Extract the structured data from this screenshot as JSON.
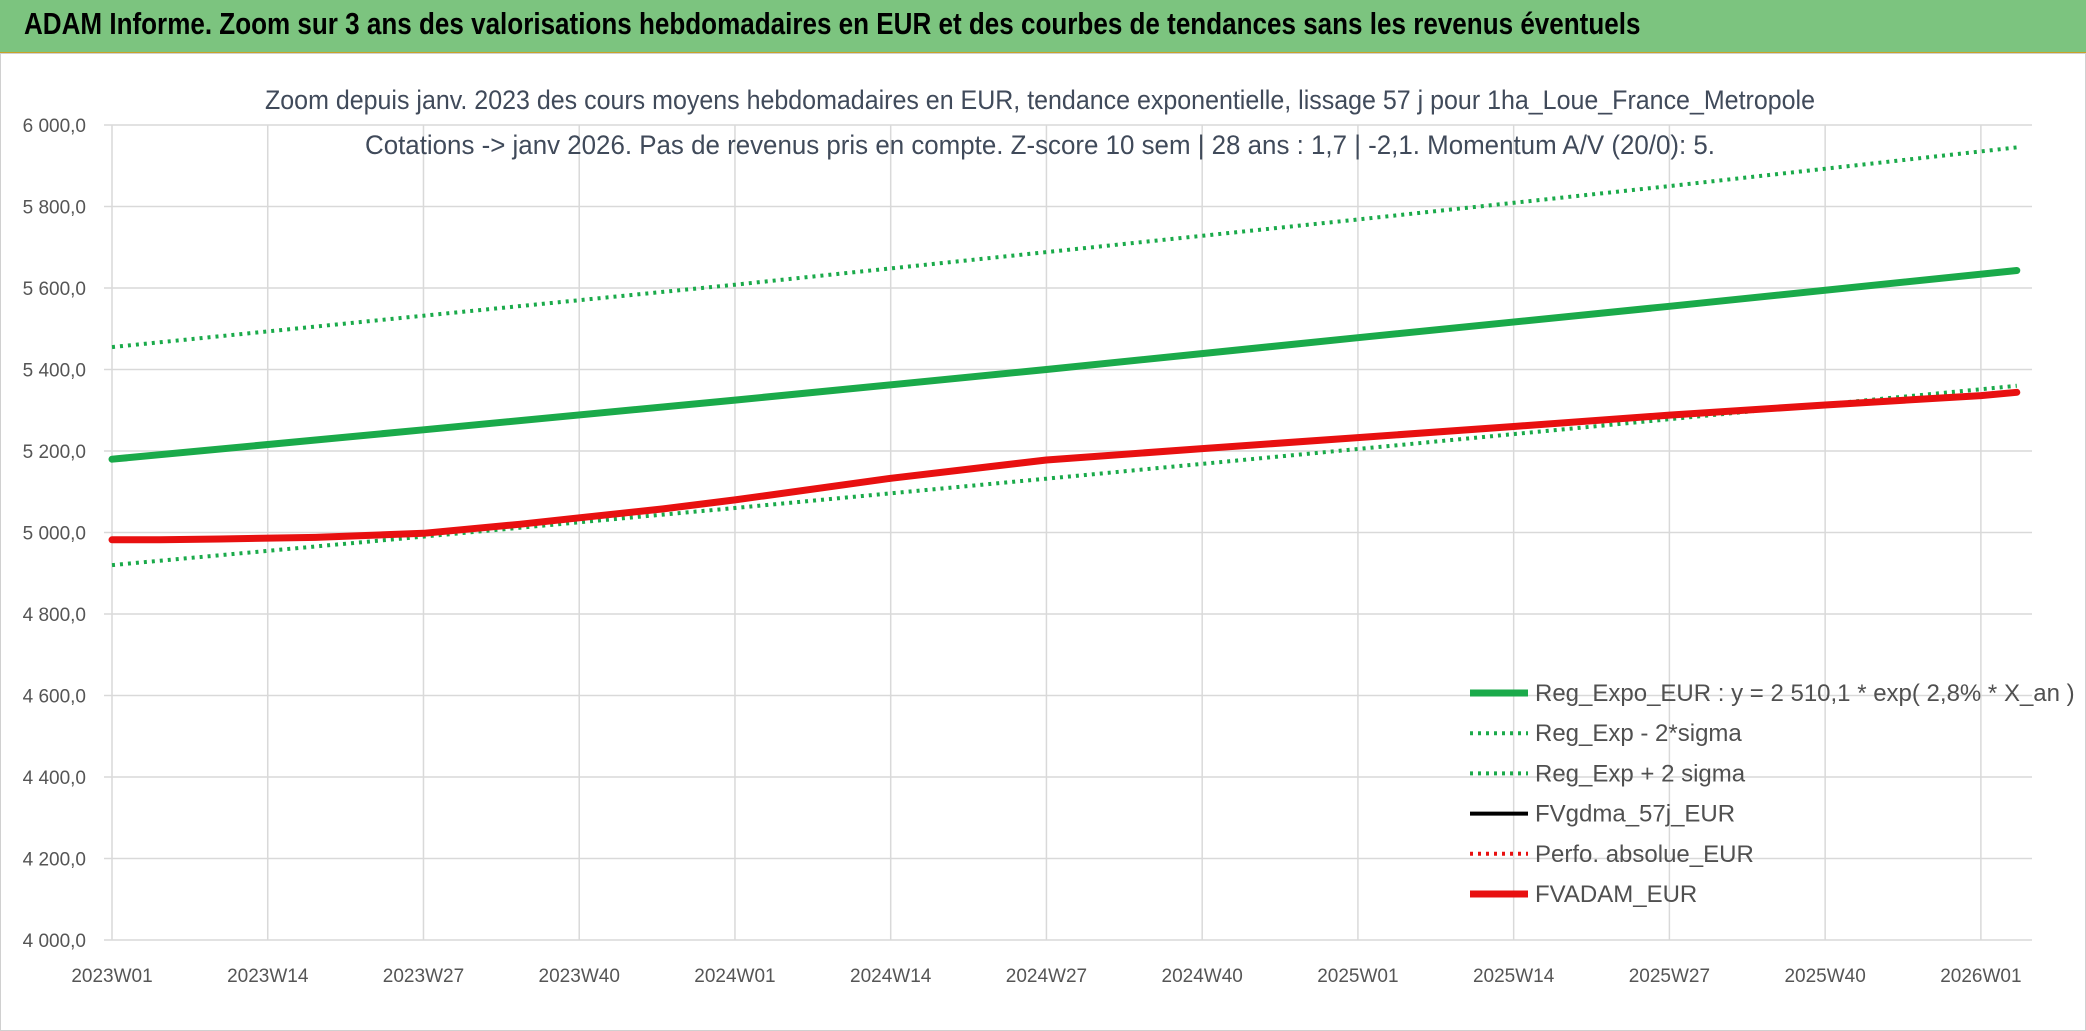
{
  "banner": {
    "title": "ADAM Informe. Zoom sur 3 ans des valorisations hebdomadaires en EUR et des courbes de tendances sans les revenus éventuels",
    "color": "#7cc47f"
  },
  "chart_data": {
    "type": "line",
    "title_line1": "Zoom depuis janv. 2023 des cours moyens hebdomadaires en EUR, tendance exponentielle, lissage 57 j pour 1ha_Loue_France_Metropole",
    "title_line2": "Cotations -> janv 2026. Pas de revenus pris en compte. Z-score 10 sem | 28 ans : 1,7 | -2,1. Momentum A/V (20/0): 5.",
    "ylim": [
      4000,
      6000
    ],
    "y_ticks": [
      "4 000,0",
      "4 200,0",
      "4 400,0",
      "4 600,0",
      "4 800,0",
      "5 000,0",
      "5 200,0",
      "5 400,0",
      "5 600,0",
      "5 800,0",
      "6 000,0"
    ],
    "y_tick_values": [
      4000,
      4200,
      4400,
      4600,
      4800,
      5000,
      5200,
      5400,
      5600,
      5800,
      6000
    ],
    "x_ticks": [
      "2023W01",
      "2023W14",
      "2023W27",
      "2023W40",
      "2024W01",
      "2024W14",
      "2024W27",
      "2024W40",
      "2025W01",
      "2025W14",
      "2025W27",
      "2025W40",
      "2026W01"
    ],
    "grid": true,
    "legend_position": "bottom-right",
    "series": [
      {
        "name": "Reg_Expo_EUR : y = 2 510,1 * exp( 2,8% *  X_an )",
        "color": "#1aaa4a",
        "style": "solid-thick",
        "x": [
          "2023W01",
          "2023W27",
          "2024W01",
          "2024W27",
          "2025W01",
          "2025W27",
          "2026W04"
        ],
        "y": [
          5180,
          5252,
          5325,
          5400,
          5478,
          5555,
          5643
        ]
      },
      {
        "name": "Reg_Exp - 2*sigma",
        "color": "#1aaa4a",
        "style": "dotted",
        "x": [
          "2023W01",
          "2023W27",
          "2024W01",
          "2024W27",
          "2025W01",
          "2025W27",
          "2026W04"
        ],
        "y": [
          4920,
          4990,
          5060,
          5132,
          5205,
          5278,
          5360
        ]
      },
      {
        "name": "Reg_Exp + 2 sigma",
        "color": "#1aaa4a",
        "style": "dotted",
        "x": [
          "2023W01",
          "2023W27",
          "2024W01",
          "2024W27",
          "2025W01",
          "2025W27",
          "2026W04"
        ],
        "y": [
          5455,
          5532,
          5608,
          5688,
          5768,
          5850,
          5945
        ]
      },
      {
        "name": "FVgdma_57j_EUR",
        "color": "#000000",
        "style": "solid",
        "x": [
          "2023W01",
          "2023W05",
          "2023W10",
          "2023W18",
          "2023W27",
          "2023W35",
          "2023W40",
          "2023W47",
          "2024W01",
          "2024W14",
          "2024W27",
          "2024W40",
          "2025W01",
          "2025W14",
          "2025W27",
          "2025W40",
          "2026W01",
          "2026W04"
        ],
        "y": [
          4982,
          4982,
          4984,
          4988,
          5000,
          5022,
          5038,
          5060,
          5082,
          5135,
          5180,
          5208,
          5235,
          5262,
          5290,
          5315,
          5338,
          5345
        ]
      },
      {
        "name": "Perfo. absolue_EUR",
        "color": "#e81010",
        "style": "dotted",
        "x": [
          "2023W01",
          "2023W05",
          "2023W10",
          "2023W18",
          "2023W27",
          "2023W35",
          "2023W40",
          "2023W47",
          "2024W01",
          "2024W14",
          "2024W27",
          "2024W40",
          "2025W01",
          "2025W14",
          "2025W27",
          "2025W40",
          "2026W01",
          "2026W04"
        ],
        "y": [
          4982,
          4982,
          4984,
          4988,
          4998,
          5020,
          5036,
          5058,
          5080,
          5133,
          5178,
          5206,
          5233,
          5260,
          5288,
          5313,
          5336,
          5344
        ]
      },
      {
        "name": "FVADAM_EUR",
        "color": "#e81010",
        "style": "solid-thick",
        "x": [
          "2023W01",
          "2023W05",
          "2023W10",
          "2023W18",
          "2023W27",
          "2023W35",
          "2023W40",
          "2023W47",
          "2024W01",
          "2024W14",
          "2024W27",
          "2024W40",
          "2025W01",
          "2025W14",
          "2025W27",
          "2025W40",
          "2026W01",
          "2026W04"
        ],
        "y": [
          4982,
          4982,
          4984,
          4988,
          4998,
          5020,
          5036,
          5058,
          5080,
          5133,
          5178,
          5206,
          5233,
          5260,
          5288,
          5313,
          5336,
          5344
        ]
      }
    ]
  }
}
